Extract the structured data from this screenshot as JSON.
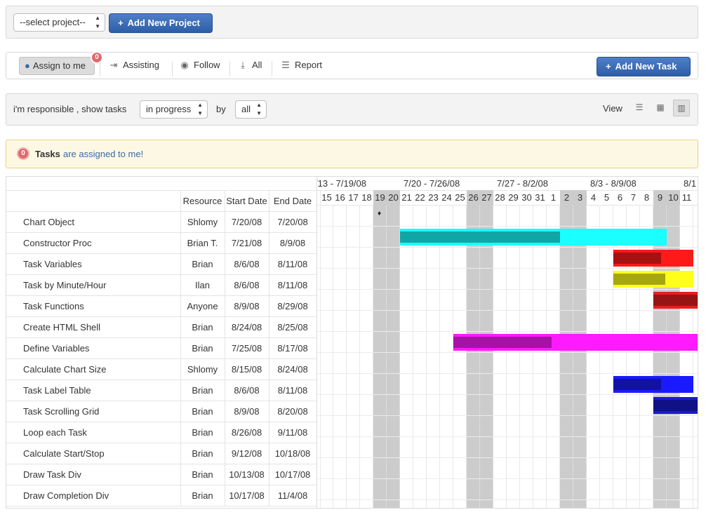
{
  "project_bar": {
    "project_select_value": "--select project--",
    "add_project_label": "Add New Project"
  },
  "toolbar": {
    "assign_label": "Assign to me",
    "assign_badge": "0",
    "assisting_label": "Assisting",
    "follow_label": "Follow",
    "all_label": "All",
    "report_label": "Report",
    "add_task_label": "Add New Task"
  },
  "filter": {
    "prefix": "i'm responsible , show tasks",
    "status_value": "in progress",
    "by_label": "by",
    "by_value": "all",
    "view_label": "View"
  },
  "alert": {
    "badge": "0",
    "bold": "Tasks",
    "text": "are assigned to me!"
  },
  "gantt": {
    "headers": {
      "name": "",
      "resource": "Resource",
      "start": "Start Date",
      "end": "End Date"
    },
    "weeks": [
      {
        "label": "/13 - 7/19/08"
      },
      {
        "label": "7/20 - 7/26/08"
      },
      {
        "label": "7/27 - 8/2/08"
      },
      {
        "label": "8/3 - 8/9/08"
      },
      {
        "label": "8/1"
      }
    ],
    "days": [
      "15",
      "16",
      "17",
      "18",
      "19",
      "20",
      "21",
      "22",
      "23",
      "24",
      "25",
      "26",
      "27",
      "28",
      "29",
      "30",
      "31",
      "1",
      "2",
      "3",
      "4",
      "5",
      "6",
      "7",
      "8",
      "9",
      "10",
      "11"
    ],
    "weekend_days": [
      4,
      5,
      11,
      12,
      18,
      19,
      25,
      26
    ],
    "tasks": [
      {
        "name": "Chart Object",
        "resource": "Shlomy",
        "start": "7/20/08",
        "end": "7/20/08",
        "milestone": true,
        "milestone_symbol": "♦"
      },
      {
        "name": "Constructor Proc",
        "resource": "Brian T.",
        "start": "7/21/08",
        "end": "8/9/08",
        "color": "#1affff",
        "progress": 0.6
      },
      {
        "name": "Task Variables",
        "resource": "Brian",
        "start": "8/6/08",
        "end": "8/11/08",
        "color": "#ff1a1a",
        "progress": 0.6
      },
      {
        "name": "Task by Minute/Hour",
        "resource": "Ilan",
        "start": "8/6/08",
        "end": "8/11/08",
        "color": "#ffff1a",
        "progress": 0.65
      },
      {
        "name": "Task Functions",
        "resource": "Anyone",
        "start": "8/9/08",
        "end": "8/29/08",
        "color": "#e81e1e",
        "progress": 1
      },
      {
        "name": "Create HTML Shell",
        "resource": "Brian",
        "start": "8/24/08",
        "end": "8/25/08"
      },
      {
        "name": "Define Variables",
        "resource": "Brian",
        "start": "7/25/08",
        "end": "8/17/08",
        "color": "#ff1aff",
        "progress": 0.4
      },
      {
        "name": "Calculate Chart Size",
        "resource": "Shlomy",
        "start": "8/15/08",
        "end": "8/24/08"
      },
      {
        "name": "Task Label Table",
        "resource": "Brian",
        "start": "8/6/08",
        "end": "8/11/08",
        "color": "#1a1aff",
        "progress": 0.6
      },
      {
        "name": "Task Scrolling Grid",
        "resource": "Brian",
        "start": "8/9/08",
        "end": "8/20/08",
        "color": "#1a1ad0",
        "progress": 1
      },
      {
        "name": "Loop each Task",
        "resource": "Brian",
        "start": "8/26/08",
        "end": "9/11/08"
      },
      {
        "name": "Calculate Start/Stop",
        "resource": "Brian",
        "start": "9/12/08",
        "end": "10/18/08"
      },
      {
        "name": "Draw Task Div",
        "resource": "Brian",
        "start": "10/13/08",
        "end": "10/17/08"
      },
      {
        "name": "Draw Completion Div",
        "resource": "Brian",
        "start": "10/17/08",
        "end": "11/4/08"
      }
    ]
  }
}
